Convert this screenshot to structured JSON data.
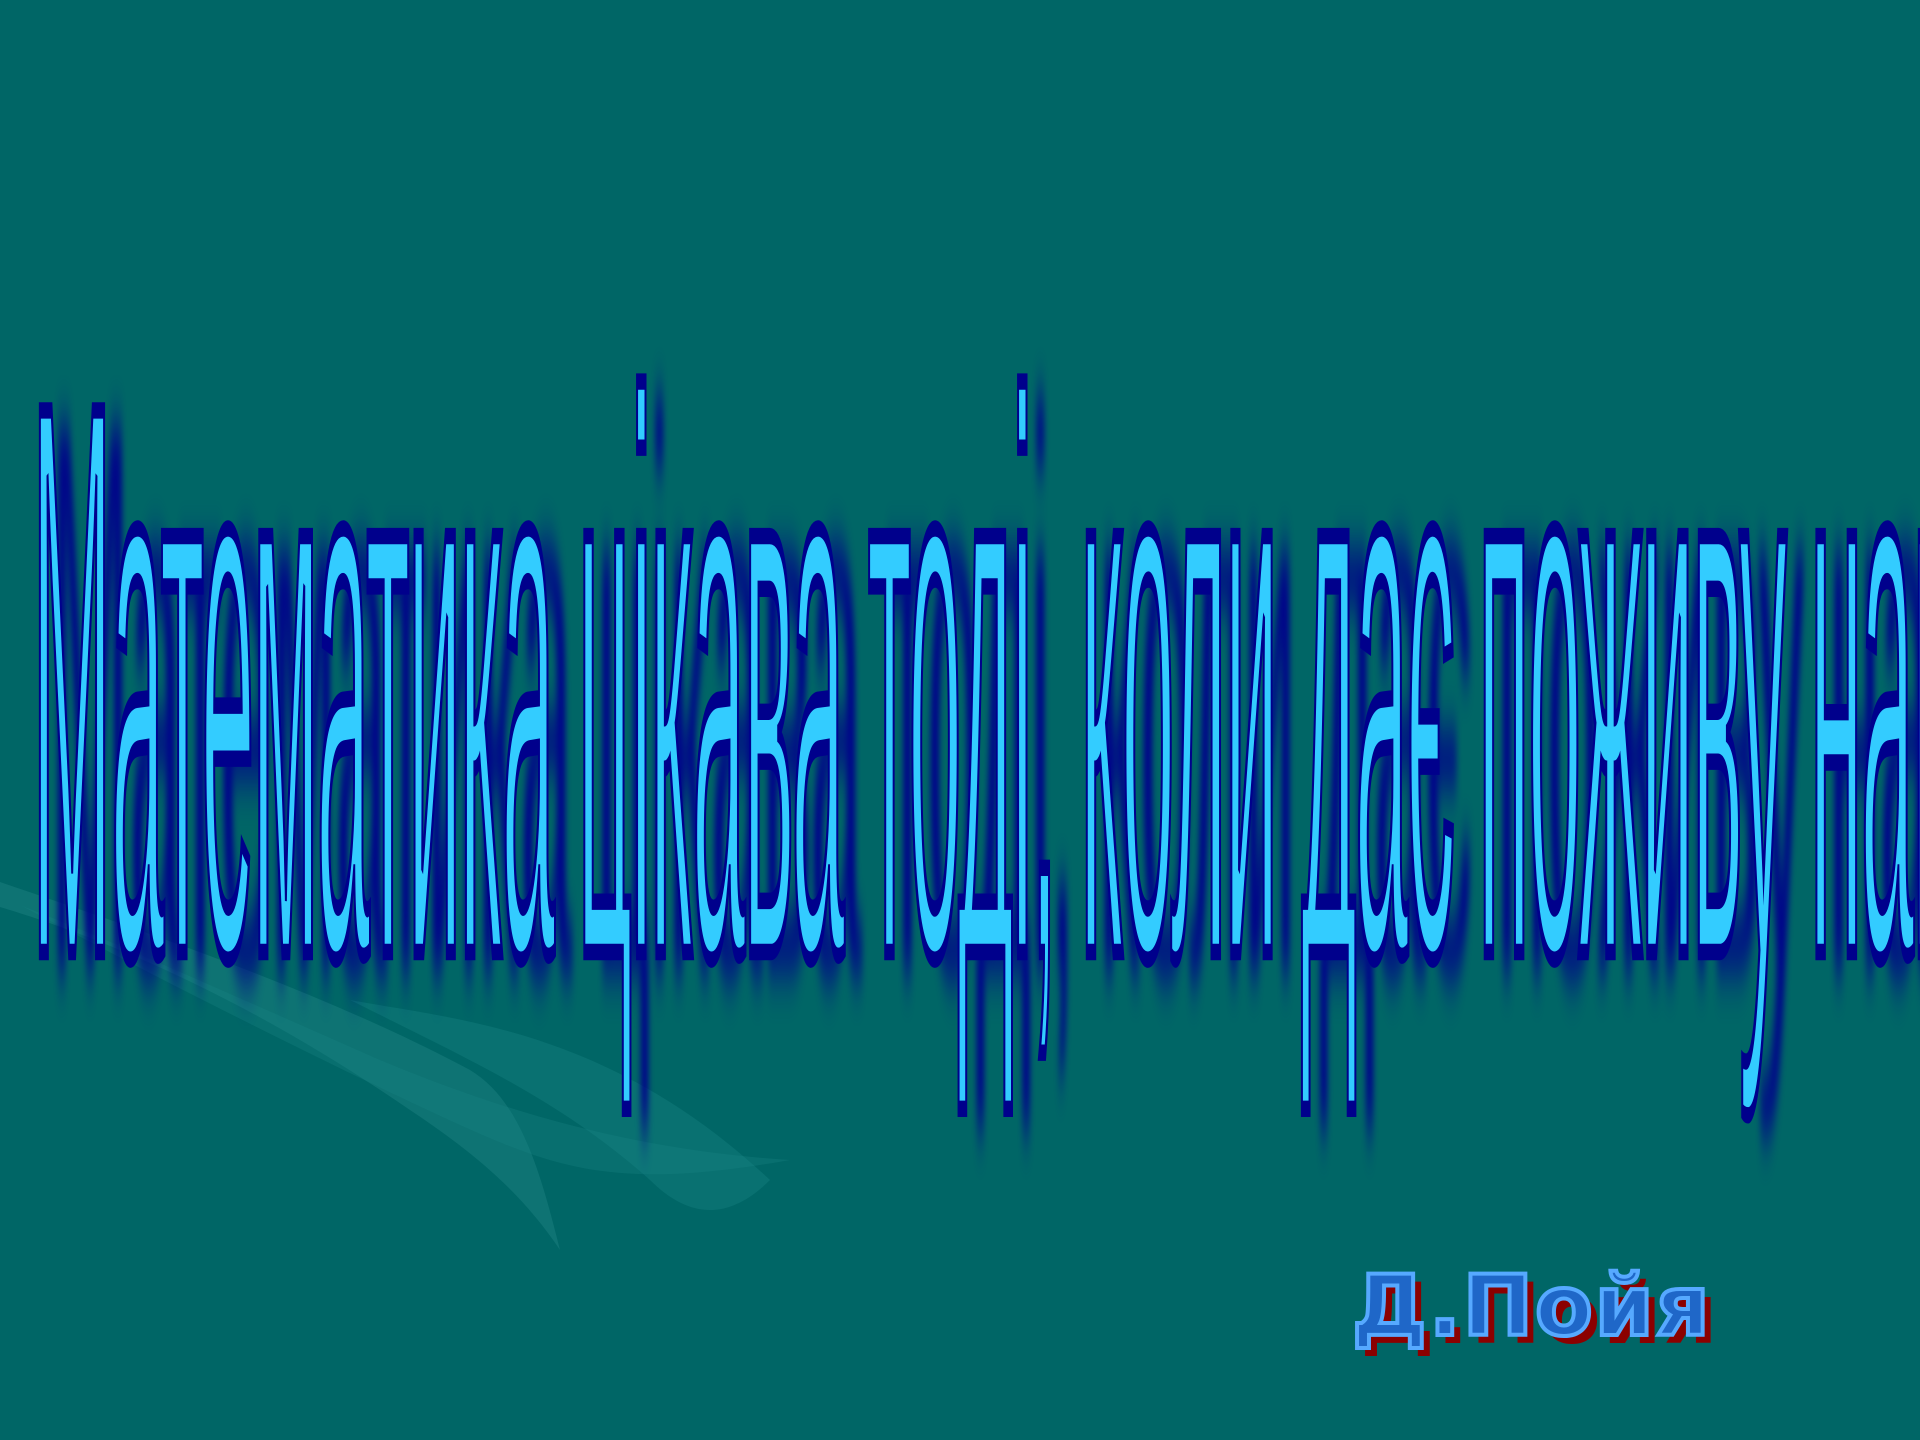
{
  "slide": {
    "quote": "Математика цікава тоді, коли дає поживу нашій винахідливості й здатності до міркувань",
    "author": "Д.Пойя"
  },
  "colors": {
    "background": "#006666",
    "quote_fill": "#33ccff",
    "quote_outline": "#00008c",
    "author_fill": "#1f67c8",
    "author_outline": "#56a9ff",
    "author_shadow": "#8b0000"
  }
}
